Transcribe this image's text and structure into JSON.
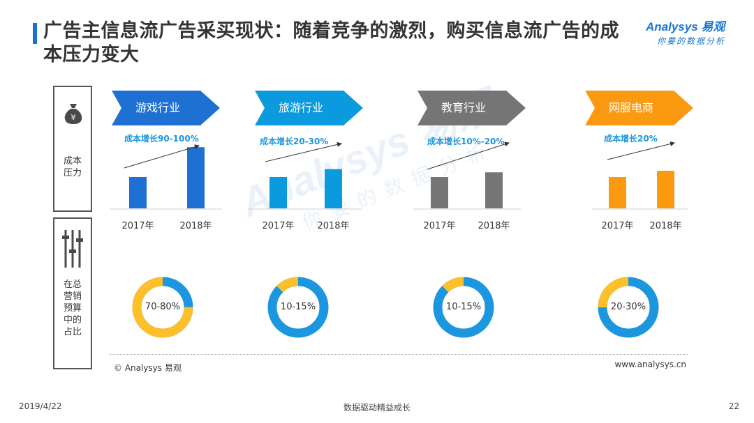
{
  "header": {
    "title": "广告主信息流广告采买现状：随着竞争的激烈，购买信息流广告的成本压力变大",
    "logo_main": "Analysys 易观",
    "logo_sub": "你要的数据分析"
  },
  "side_labels": {
    "top": [
      "成本",
      "压力"
    ],
    "bottom": [
      "在总",
      "营销",
      "预算",
      "中的",
      "占比"
    ]
  },
  "icons": {
    "top": "money-bag-icon",
    "bottom": "sliders-icon"
  },
  "colors": {
    "game": "#1e70d2",
    "travel": "#0b9ade",
    "education": "#757575",
    "ecommerce": "#fb9a10",
    "donut_base": "#1c96de",
    "donut_share": "#fdbf2a"
  },
  "chart_data": {
    "type": "bar",
    "categories": [
      "2017年",
      "2018年"
    ],
    "groups": [
      {
        "industry": "游戏行业",
        "growth_label": "成本增长90-100%",
        "values": [
          1.0,
          1.95
        ],
        "share_label": "70-80%",
        "share_range": [
          70,
          80
        ],
        "color": "#1e70d2"
      },
      {
        "industry": "旅游行业",
        "growth_label": "成本增长20-30%",
        "values": [
          1.0,
          1.25
        ],
        "share_label": "10-15%",
        "share_range": [
          10,
          15
        ],
        "color": "#0b9ade"
      },
      {
        "industry": "教育行业",
        "growth_label": "成本增长10%-20%",
        "values": [
          1.0,
          1.15
        ],
        "share_label": "10-15%",
        "share_range": [
          10,
          15
        ],
        "color": "#757575"
      },
      {
        "industry": "网服电商",
        "growth_label": "成本增长20%",
        "values": [
          1.0,
          1.2
        ],
        "share_label": "20-30%",
        "share_range": [
          20,
          30
        ],
        "color": "#fb9a10"
      }
    ],
    "donut": {
      "type": "pie",
      "share_color": "#fdbf2a",
      "base_color": "#1c96de"
    }
  },
  "footer": {
    "copyright": "© Analysys 易观",
    "website": "www.analysys.cn",
    "date": "2019/4/22",
    "slogan": "数据驱动精益成长",
    "page": "22"
  }
}
